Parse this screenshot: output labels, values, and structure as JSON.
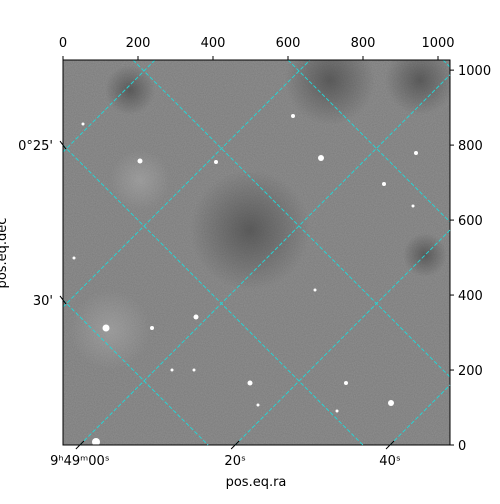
{
  "chart_data": {
    "type": "image",
    "xlabel": "pos.eq.ra",
    "ylabel": "pos.eq.dec",
    "xlim": [
      0,
      1032
    ],
    "ylim": [
      0,
      1027
    ],
    "xticks": [
      0,
      200,
      400,
      600,
      800,
      1000
    ],
    "yticks": [
      0,
      200,
      400,
      600,
      800,
      1000
    ],
    "ra_ticks": [
      {
        "value": 45,
        "label": "9ʰ49ᵐ00ˢ"
      },
      {
        "value": 459,
        "label": "20ˢ"
      },
      {
        "value": 872,
        "label": "40ˢ"
      }
    ],
    "dec_ticks": [
      {
        "value": 800,
        "label": "0°25'"
      },
      {
        "value": 387,
        "label": "30'"
      }
    ],
    "grid": true,
    "grid_color": "#27d3d3"
  }
}
